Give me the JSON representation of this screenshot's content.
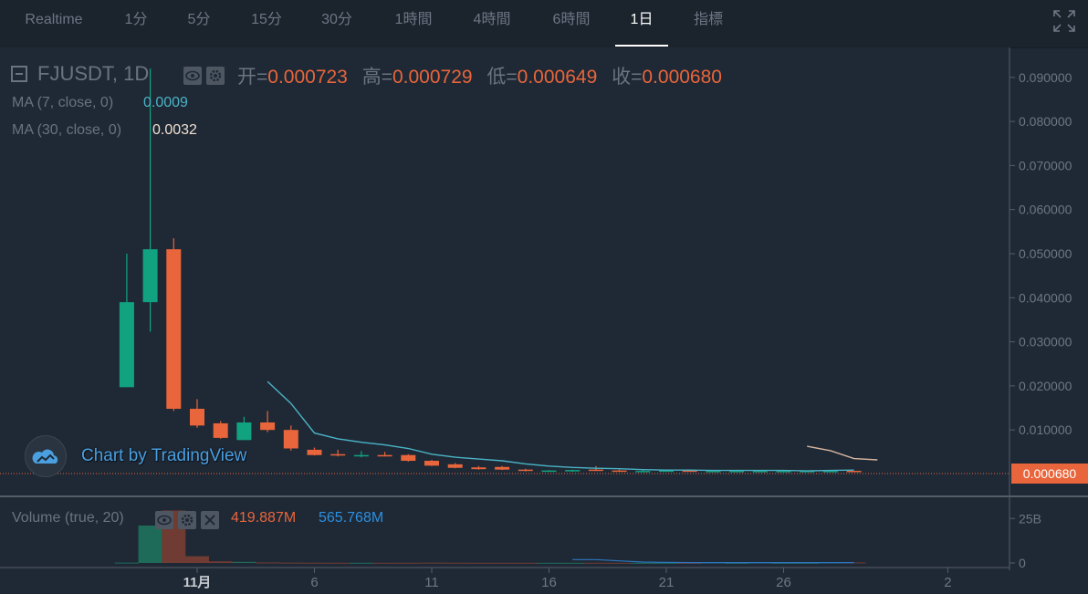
{
  "tabs": [
    {
      "label": "Realtime",
      "active": false
    },
    {
      "label": "1分",
      "active": false
    },
    {
      "label": "5分",
      "active": false
    },
    {
      "label": "15分",
      "active": false
    },
    {
      "label": "30分",
      "active": false
    },
    {
      "label": "1時間",
      "active": false
    },
    {
      "label": "4時間",
      "active": false
    },
    {
      "label": "6時間",
      "active": false
    },
    {
      "label": "1日",
      "active": true
    },
    {
      "label": "指標",
      "active": false
    }
  ],
  "fullscreen_icon": "fullscreen-icon",
  "legend": {
    "symbol": "FJUSDT, 1D",
    "open_label": "开=",
    "open": "0.000723",
    "high_label": "高=",
    "high": "0.000729",
    "low_label": "低=",
    "low": "0.000649",
    "close_label": "收=",
    "close": "0.000680",
    "ma7_label": "MA (7, close, 0)",
    "ma7_value": "0.0009",
    "ma30_label": "MA (30, close, 0)",
    "ma30_value": "0.0032"
  },
  "volume": {
    "label": "Volume (true, 20)",
    "value": "419.887M",
    "ma_value": "565.768M"
  },
  "watermark": "Chart by TradingView",
  "last_price": "0.000680",
  "colors": {
    "up": "#26a69a",
    "up_body": "#11a37f",
    "down": "#e9653b",
    "ma7": "#4ab3c6",
    "ma30": "#d6b59f",
    "vol_ma": "#2c77c1",
    "background": "#1f2935",
    "accent": "#e9653b"
  },
  "price_axis": {
    "ticks": [
      "0.090000",
      "0.080000",
      "0.070000",
      "0.060000",
      "0.050000",
      "0.040000",
      "0.030000",
      "0.020000",
      "0.010000"
    ],
    "tick_values": [
      0.09,
      0.08,
      0.07,
      0.06,
      0.05,
      0.04,
      0.03,
      0.02,
      0.01
    ]
  },
  "volume_axis": {
    "ticks": [
      "25B",
      "0"
    ],
    "tick_values": [
      25,
      0
    ]
  },
  "time_axis": {
    "ticks": [
      "11月",
      "6",
      "11",
      "16",
      "21",
      "26",
      "2"
    ],
    "tick_days": [
      0,
      5,
      10,
      15,
      20,
      25,
      32
    ]
  },
  "chart_data": {
    "type": "candlestick",
    "title": "FJUSDT, 1D",
    "xlabel": "",
    "ylabel": "",
    "ylim": [
      0,
      0.095
    ],
    "candles": [
      {
        "day": -3,
        "o": 0.0197,
        "h": 0.05,
        "l": 0.0197,
        "c": 0.039,
        "vol": 0.2
      },
      {
        "day": -2,
        "o": 0.039,
        "h": 0.092,
        "l": 0.0323,
        "c": 0.051,
        "vol": 21.0
      },
      {
        "day": -1,
        "o": 0.051,
        "h": 0.0535,
        "l": 0.0143,
        "c": 0.0148,
        "vol": 29.5
      },
      {
        "day": 0,
        "o": 0.0148,
        "h": 0.017,
        "l": 0.0105,
        "c": 0.011,
        "vol": 3.8
      },
      {
        "day": 1,
        "o": 0.0115,
        "h": 0.012,
        "l": 0.008,
        "c": 0.0082,
        "vol": 0.9
      },
      {
        "day": 2,
        "o": 0.0077,
        "h": 0.013,
        "l": 0.0077,
        "c": 0.0117,
        "vol": 0.6
      },
      {
        "day": 3,
        "o": 0.0117,
        "h": 0.0143,
        "l": 0.0095,
        "c": 0.01,
        "vol": 0.3
      },
      {
        "day": 4,
        "o": 0.01,
        "h": 0.011,
        "l": 0.0053,
        "c": 0.0058,
        "vol": 0.2
      },
      {
        "day": 5,
        "o": 0.0055,
        "h": 0.006,
        "l": 0.0042,
        "c": 0.0043,
        "vol": 0.15
      },
      {
        "day": 6,
        "o": 0.0045,
        "h": 0.0055,
        "l": 0.004,
        "c": 0.0042,
        "vol": 0.12
      },
      {
        "day": 7,
        "o": 0.004,
        "h": 0.0052,
        "l": 0.0038,
        "c": 0.0043,
        "vol": 0.12
      },
      {
        "day": 8,
        "o": 0.0043,
        "h": 0.005,
        "l": 0.004,
        "c": 0.0041,
        "vol": 0.1
      },
      {
        "day": 9,
        "o": 0.0043,
        "h": 0.0045,
        "l": 0.0028,
        "c": 0.003,
        "vol": 0.12
      },
      {
        "day": 10,
        "o": 0.003,
        "h": 0.0032,
        "l": 0.0018,
        "c": 0.0019,
        "vol": 0.2
      },
      {
        "day": 11,
        "o": 0.0022,
        "h": 0.0025,
        "l": 0.0013,
        "c": 0.0014,
        "vol": 0.15
      },
      {
        "day": 12,
        "o": 0.0015,
        "h": 0.0018,
        "l": 0.001,
        "c": 0.0011,
        "vol": 0.1
      },
      {
        "day": 13,
        "o": 0.0016,
        "h": 0.0018,
        "l": 0.0009,
        "c": 0.001,
        "vol": 0.1
      },
      {
        "day": 14,
        "o": 0.001,
        "h": 0.0012,
        "l": 0.0006,
        "c": 0.0007,
        "vol": 0.1
      },
      {
        "day": 15,
        "o": 0.0007,
        "h": 0.0009,
        "l": 0.0005,
        "c": 0.0008,
        "vol": 0.1
      },
      {
        "day": 16,
        "o": 0.0006,
        "h": 0.001,
        "l": 0.0005,
        "c": 0.0009,
        "vol": 0.1
      },
      {
        "day": 17,
        "o": 0.001,
        "h": 0.0018,
        "l": 0.0007,
        "c": 0.0008,
        "vol": 0.12
      },
      {
        "day": 18,
        "o": 0.0008,
        "h": 0.001,
        "l": 0.0006,
        "c": 0.0007,
        "vol": 0.1
      },
      {
        "day": 19,
        "o": 0.0007,
        "h": 0.0009,
        "l": 0.0006,
        "c": 0.0007,
        "vol": 0.1
      },
      {
        "day": 20,
        "o": 0.0007,
        "h": 0.0008,
        "l": 0.0006,
        "c": 0.0008,
        "vol": 0.1
      },
      {
        "day": 21,
        "o": 0.0008,
        "h": 0.0009,
        "l": 0.0006,
        "c": 0.0007,
        "vol": 0.1
      },
      {
        "day": 22,
        "o": 0.0007,
        "h": 0.0009,
        "l": 0.0006,
        "c": 0.0007,
        "vol": 0.3
      },
      {
        "day": 23,
        "o": 0.0007,
        "h": 0.0009,
        "l": 0.0006,
        "c": 0.0007,
        "vol": 0.1
      },
      {
        "day": 24,
        "o": 0.0007,
        "h": 0.0008,
        "l": 0.0006,
        "c": 0.0007,
        "vol": 0.3
      },
      {
        "day": 25,
        "o": 0.0007,
        "h": 0.0009,
        "l": 0.0006,
        "c": 0.0007,
        "vol": 0.1
      },
      {
        "day": 26,
        "o": 0.0007,
        "h": 0.0008,
        "l": 0.0006,
        "c": 0.0007,
        "vol": 0.1
      },
      {
        "day": 27,
        "o": 0.0007,
        "h": 0.0008,
        "l": 0.0006,
        "c": 0.0007,
        "vol": 0.3
      },
      {
        "day": 28,
        "o": 0.000723,
        "h": 0.000729,
        "l": 0.000649,
        "c": 0.00068,
        "vol": 0.3
      }
    ],
    "ma7": [
      [
        3,
        0.021
      ],
      [
        4,
        0.016
      ],
      [
        5,
        0.0093
      ],
      [
        6,
        0.008
      ],
      [
        7,
        0.0072
      ],
      [
        8,
        0.0066
      ],
      [
        9,
        0.0058
      ],
      [
        10,
        0.0045
      ],
      [
        11,
        0.0038
      ],
      [
        12,
        0.0034
      ],
      [
        13,
        0.003
      ],
      [
        14,
        0.0023
      ],
      [
        15,
        0.0018
      ],
      [
        16,
        0.0015
      ],
      [
        17,
        0.0013
      ],
      [
        18,
        0.0012
      ],
      [
        19,
        0.001
      ],
      [
        20,
        0.0009
      ],
      [
        21,
        0.0009
      ],
      [
        22,
        0.0008
      ],
      [
        23,
        0.0008
      ],
      [
        24,
        0.0008
      ],
      [
        25,
        0.0008
      ],
      [
        26,
        0.0007
      ],
      [
        27,
        0.0008
      ],
      [
        28,
        0.0009
      ]
    ],
    "ma30": [
      [
        26,
        0.0063
      ],
      [
        27,
        0.0053
      ],
      [
        28,
        0.0035
      ],
      [
        29,
        0.0032
      ]
    ],
    "vol_ma": [
      [
        16,
        1.9
      ],
      [
        17,
        1.9
      ],
      [
        18,
        1.2
      ],
      [
        19,
        0.5
      ],
      [
        20,
        0.3
      ],
      [
        21,
        0.2
      ],
      [
        22,
        0.2
      ],
      [
        23,
        0.2
      ],
      [
        24,
        0.2
      ],
      [
        25,
        0.2
      ],
      [
        26,
        0.2
      ],
      [
        27,
        0.2
      ],
      [
        28,
        0.2
      ]
    ]
  }
}
